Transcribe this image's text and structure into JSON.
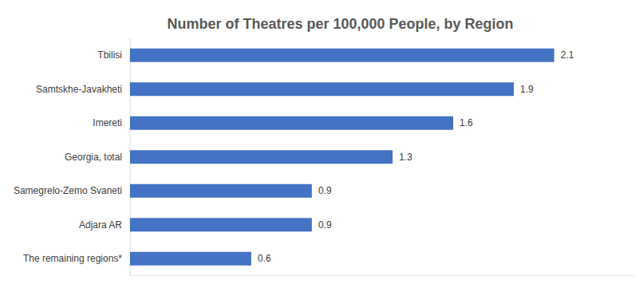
{
  "chart_data": {
    "type": "bar",
    "orientation": "horizontal",
    "title": "Number of Theatres per 100,000 People, by Region",
    "categories": [
      "Tbilisi",
      "Samtskhe-Javakheti",
      "Imereti",
      "Georgia, total",
      "Samegrelo-Zemo Svaneti",
      "Adjara AR",
      "The remaining regions*"
    ],
    "values": [
      2.1,
      1.9,
      1.6,
      1.3,
      0.9,
      0.9,
      0.6
    ],
    "color": "#4472c4",
    "ylim": [
      0,
      2.5
    ],
    "grid": false,
    "data_labels": true,
    "tick_labels": "x"
  }
}
